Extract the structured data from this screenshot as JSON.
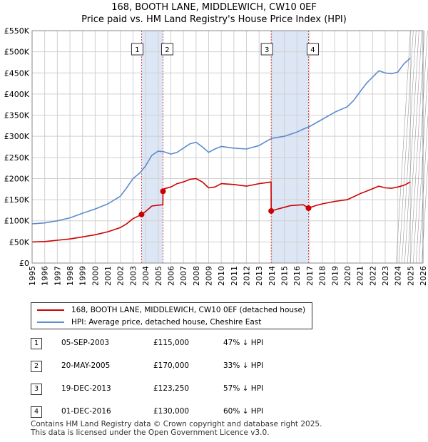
{
  "title_line1": "168, BOOTH LANE, MIDDLEWICH, CW10 0EF",
  "title_line2": "Price paid vs. HM Land Registry's House Price Index (HPI)",
  "legend": {
    "red_label": "168, BOOTH LANE, MIDDLEWICH, CW10 0EF (detached house)",
    "blue_label": "HPI: Average price, detached house, Cheshire East"
  },
  "colors": {
    "red": "#cc0000",
    "blue": "#5b8ccc",
    "band": "#dde6f5",
    "vline": "#d94040"
  },
  "transactions": [
    {
      "num": "1",
      "date": "05-SEP-2003",
      "price": "£115,000",
      "hpi": "47% ↓ HPI"
    },
    {
      "num": "2",
      "date": "20-MAY-2005",
      "price": "£170,000",
      "hpi": "33% ↓ HPI"
    },
    {
      "num": "3",
      "date": "19-DEC-2013",
      "price": "£123,250",
      "hpi": "57% ↓ HPI"
    },
    {
      "num": "4",
      "date": "01-DEC-2016",
      "price": "£130,000",
      "hpi": "60% ↓ HPI"
    }
  ],
  "footer_line1": "Contains HM Land Registry data © Crown copyright and database right 2025.",
  "footer_line2": "This data is licensed under the Open Government Licence v3.0.",
  "chart_data": {
    "type": "line",
    "title": "Price paid vs. HM Land Registry's House Price Index (HPI)",
    "xlabel": "",
    "ylabel": "",
    "xlim": [
      1995,
      2026
    ],
    "ylim": [
      0,
      550000
    ],
    "x_ticks": [
      1995,
      1996,
      1997,
      1998,
      1999,
      2000,
      2001,
      2002,
      2003,
      2004,
      2005,
      2006,
      2007,
      2008,
      2009,
      2010,
      2011,
      2012,
      2013,
      2014,
      2015,
      2016,
      2017,
      2018,
      2019,
      2020,
      2021,
      2022,
      2023,
      2024,
      2025,
      2026
    ],
    "y_ticks": [
      0,
      50000,
      100000,
      150000,
      200000,
      250000,
      300000,
      350000,
      400000,
      450000,
      500000,
      550000
    ],
    "y_tick_labels": [
      "£0",
      "£50K",
      "£100K",
      "£150K",
      "£200K",
      "£250K",
      "£300K",
      "£350K",
      "£400K",
      "£450K",
      "£500K",
      "£550K"
    ],
    "grid": true,
    "legend_position": "below",
    "highlight_bands": [
      [
        2003.68,
        2005.38
      ],
      [
        2013.96,
        2016.92
      ]
    ],
    "forecast_from": 2025.0,
    "sale_markers": [
      {
        "label": "1",
        "x": 2003.68,
        "y": 115000
      },
      {
        "label": "2",
        "x": 2005.38,
        "y": 170000
      },
      {
        "label": "3",
        "x": 2013.96,
        "y": 123250
      },
      {
        "label": "4",
        "x": 2016.92,
        "y": 130000
      }
    ],
    "series": [
      {
        "name": "HPI: Average price, detached house, Cheshire East",
        "color": "#5b8ccc",
        "x": [
          1995,
          1996,
          1997,
          1998,
          1999,
          2000,
          2001,
          2002,
          2002.5,
          2003,
          2003.5,
          2004,
          2004.5,
          2005,
          2005.5,
          2006,
          2006.5,
          2007,
          2007.5,
          2008,
          2008.5,
          2009,
          2009.5,
          2010,
          2011,
          2012,
          2013,
          2013.5,
          2014,
          2015,
          2016,
          2016.5,
          2017,
          2018,
          2019,
          2020,
          2020.5,
          2021,
          2021.5,
          2022,
          2022.5,
          2023,
          2023.5,
          2024,
          2024.5,
          2025
        ],
        "y": [
          93000,
          95000,
          100000,
          107000,
          118000,
          128000,
          140000,
          158000,
          178000,
          200000,
          212000,
          230000,
          255000,
          265000,
          263000,
          258000,
          262000,
          272000,
          282000,
          286000,
          275000,
          262000,
          270000,
          276000,
          272000,
          270000,
          278000,
          287000,
          295000,
          300000,
          310000,
          317000,
          323000,
          340000,
          357000,
          370000,
          385000,
          405000,
          425000,
          440000,
          455000,
          450000,
          448000,
          452000,
          472000,
          485000
        ]
      },
      {
        "name": "168, BOOTH LANE, MIDDLEWICH, CW10 0EF (detached house)",
        "color": "#cc0000",
        "x": [
          1995,
          1996,
          1997,
          1998,
          1999,
          2000,
          2001,
          2002,
          2002.5,
          2003,
          2003.68,
          2004,
          2004.5,
          2005,
          2005.37,
          2005.38,
          2005.5,
          2006,
          2006.5,
          2007,
          2007.5,
          2008,
          2008.5,
          2009,
          2009.5,
          2010,
          2011,
          2012,
          2013,
          2013.5,
          2013.95,
          2013.96,
          2014.5,
          2015,
          2015.5,
          2016,
          2016.5,
          2016.92,
          2017.5,
          2018,
          2019,
          2020,
          2021,
          2022,
          2022.5,
          2023,
          2023.5,
          2024,
          2024.5,
          2025
        ],
        "y": [
          50000,
          51000,
          54000,
          57000,
          62000,
          67000,
          74000,
          84000,
          93000,
          105000,
          115000,
          122000,
          135000,
          137000,
          138000,
          170000,
          176000,
          180000,
          188000,
          192000,
          198000,
          200000,
          192000,
          178000,
          180000,
          188000,
          186000,
          182000,
          188000,
          190000,
          192000,
          123250,
          128000,
          132000,
          136000,
          137000,
          138000,
          130000,
          136000,
          140000,
          146000,
          150000,
          164000,
          176000,
          182000,
          178000,
          177000,
          180000,
          184000,
          192000
        ]
      }
    ]
  }
}
